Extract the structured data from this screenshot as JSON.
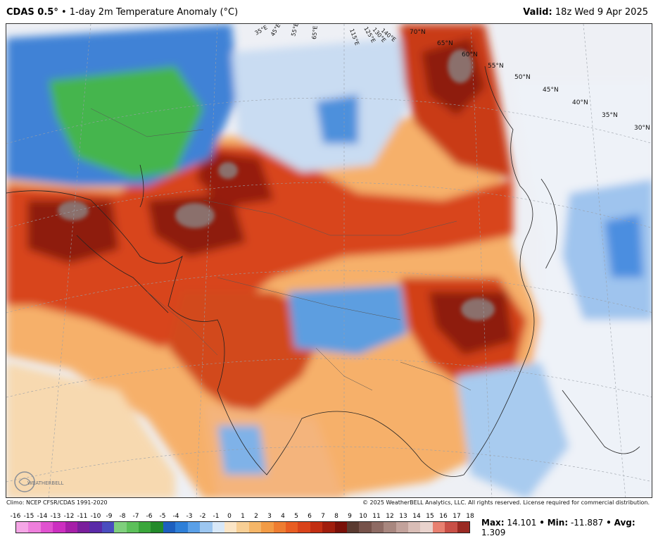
{
  "header": {
    "model": "CDAS 0.5",
    "degree": "°",
    "bullet": "•",
    "title": "1-day 2m Temperature Anomaly (°C)",
    "valid_label": "Valid:",
    "valid_time": "18z Wed 9 Apr 2025"
  },
  "map": {
    "lat_labels": [
      "70°N",
      "65°N",
      "60°N",
      "55°N",
      "50°N",
      "45°N",
      "40°N",
      "35°N",
      "30°N"
    ],
    "lon_labels": [
      "35°E",
      "45°E",
      "55°E",
      "65°E",
      "115°E",
      "125°E",
      "130°E",
      "140°E"
    ],
    "colors": {
      "very_warm": "#7a0f0a",
      "warm_core": "#b0250f",
      "warm": "#dd4a1c",
      "mild_warm": "#f28a3a",
      "slight_warm": "#f9c88a",
      "neutral": "#f1f1f4",
      "slight_cool": "#c8dcf2",
      "cool": "#5a9ae0",
      "cold": "#2e6ec8",
      "very_cold": "#39b54a",
      "extreme_warm": "#8b6f6c"
    }
  },
  "footer": {
    "clim": "Climo: NCEP CFSR/CDAS 1991-2020",
    "copyright": "© 2025 WeatherBELL Analytics, LLC. All rights reserved. License required for commercial distribution.",
    "logo_text": "WEATHERBELL"
  },
  "scale": {
    "labels": [
      "-16",
      "-15",
      "-14",
      "-13",
      "-12",
      "-11",
      "-10",
      "-9",
      "-8",
      "-7",
      "-6",
      "-5",
      "-4",
      "-3",
      "-2",
      "-1",
      "0",
      "1",
      "2",
      "3",
      "4",
      "5",
      "6",
      "7",
      "8",
      "9",
      "10",
      "11",
      "12",
      "13",
      "14",
      "15",
      "16",
      "17",
      "18"
    ],
    "colors": [
      "#f5a6e6",
      "#ee7fdc",
      "#e052cf",
      "#cc2fc0",
      "#a61fa8",
      "#7a1f9c",
      "#5a2aa8",
      "#4a4dbf",
      "#7fcf7d",
      "#5cc05a",
      "#3aa63b",
      "#238a2a",
      "#1d5fbf",
      "#2e7fd8",
      "#5aa0e8",
      "#9cc6f0",
      "#d8e8f8",
      "#fbe5c6",
      "#f8cf95",
      "#f5b668",
      "#f29b45",
      "#ee7d31",
      "#e85d22",
      "#d9431a",
      "#c22e12",
      "#a01d0c",
      "#7a1008",
      "#5a3a30",
      "#76524a",
      "#8e6b64",
      "#a8877f",
      "#c2a29b",
      "#d9bdb6",
      "#e9d3cd",
      "#e88070",
      "#c94f46",
      "#9a2a23"
    ]
  },
  "stats": {
    "max_label": "Max:",
    "max": "14.101",
    "min_label": "Min:",
    "min": "-11.887",
    "avg_label": "Avg:",
    "avg": "1.309",
    "sep": "•"
  }
}
